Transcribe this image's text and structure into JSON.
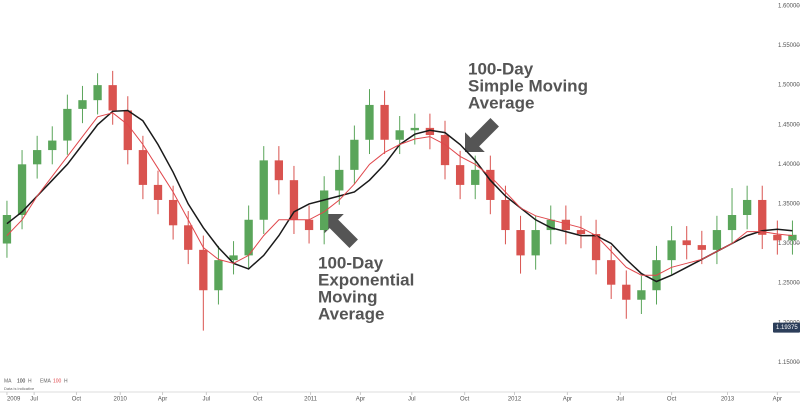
{
  "chart_data": {
    "type": "candlestick",
    "candles": {
      "open": [
        1.3,
        1.336,
        1.4,
        1.418,
        1.43,
        1.47,
        1.481,
        1.5,
        1.468,
        1.418,
        1.374,
        1.355,
        1.323,
        1.292,
        1.241,
        1.279,
        1.285,
        1.33,
        1.405,
        1.38,
        1.33,
        1.317,
        1.367,
        1.393,
        1.431,
        1.475,
        1.431,
        1.443,
        1.446,
        1.437,
        1.399,
        1.374,
        1.393,
        1.355,
        1.317,
        1.285,
        1.317,
        1.33,
        1.317,
        1.312,
        1.279,
        1.248,
        1.229,
        1.241,
        1.279,
        1.304,
        1.298,
        1.292,
        1.317,
        1.336,
        1.355,
        1.311,
        1.304
      ],
      "high": [
        1.354,
        1.418,
        1.436,
        1.448,
        1.488,
        1.499,
        1.515,
        1.518,
        1.486,
        1.436,
        1.392,
        1.373,
        1.341,
        1.31,
        1.297,
        1.303,
        1.348,
        1.423,
        1.423,
        1.398,
        1.348,
        1.385,
        1.411,
        1.449,
        1.495,
        1.493,
        1.461,
        1.464,
        1.464,
        1.455,
        1.417,
        1.411,
        1.411,
        1.373,
        1.335,
        1.335,
        1.348,
        1.348,
        1.335,
        1.33,
        1.297,
        1.266,
        1.259,
        1.297,
        1.322,
        1.322,
        1.316,
        1.335,
        1.37,
        1.373,
        1.373,
        1.329,
        1.329
      ],
      "low": [
        1.282,
        1.318,
        1.382,
        1.4,
        1.412,
        1.452,
        1.463,
        1.45,
        1.4,
        1.356,
        1.337,
        1.305,
        1.274,
        1.19,
        1.223,
        1.261,
        1.267,
        1.312,
        1.362,
        1.312,
        1.3,
        1.299,
        1.349,
        1.375,
        1.413,
        1.413,
        1.413,
        1.425,
        1.419,
        1.381,
        1.356,
        1.356,
        1.337,
        1.299,
        1.262,
        1.267,
        1.299,
        1.299,
        1.294,
        1.261,
        1.23,
        1.205,
        1.211,
        1.223,
        1.261,
        1.28,
        1.274,
        1.274,
        1.299,
        1.318,
        1.293,
        1.286,
        1.286
      ],
      "close": [
        1.336,
        1.4,
        1.418,
        1.43,
        1.47,
        1.481,
        1.5,
        1.468,
        1.418,
        1.374,
        1.355,
        1.323,
        1.292,
        1.241,
        1.279,
        1.285,
        1.33,
        1.405,
        1.38,
        1.33,
        1.317,
        1.367,
        1.393,
        1.431,
        1.475,
        1.431,
        1.443,
        1.446,
        1.437,
        1.399,
        1.374,
        1.393,
        1.355,
        1.317,
        1.285,
        1.317,
        1.33,
        1.317,
        1.312,
        1.279,
        1.248,
        1.229,
        1.241,
        1.279,
        1.304,
        1.298,
        1.292,
        1.317,
        1.336,
        1.355,
        1.311,
        1.304,
        1.311
      ],
      "up_color": "#5aa55a",
      "down_color": "#d9534f"
    },
    "lines": [
      {
        "name": "MA",
        "period": 100,
        "source": "H",
        "color": "#1a1a1a",
        "values": [
          1.325,
          1.34,
          1.36,
          1.38,
          1.4,
          1.425,
          1.45,
          1.467,
          1.468,
          1.455,
          1.425,
          1.39,
          1.35,
          1.32,
          1.295,
          1.275,
          1.268,
          1.285,
          1.31,
          1.34,
          1.35,
          1.355,
          1.36,
          1.365,
          1.38,
          1.4,
          1.425,
          1.438,
          1.443,
          1.44,
          1.425,
          1.405,
          1.38,
          1.36,
          1.345,
          1.33,
          1.32,
          1.315,
          1.31,
          1.31,
          1.3,
          1.28,
          1.262,
          1.252,
          1.26,
          1.27,
          1.28,
          1.29,
          1.3,
          1.31,
          1.316,
          1.318,
          1.316
        ]
      },
      {
        "name": "EMA",
        "period": 100,
        "source": "H",
        "color": "#e0474c",
        "values": [
          1.31,
          1.33,
          1.36,
          1.385,
          1.41,
          1.435,
          1.46,
          1.465,
          1.45,
          1.425,
          1.395,
          1.365,
          1.33,
          1.295,
          1.28,
          1.275,
          1.285,
          1.31,
          1.33,
          1.33,
          1.33,
          1.34,
          1.355,
          1.375,
          1.4,
          1.415,
          1.425,
          1.432,
          1.435,
          1.425,
          1.41,
          1.4,
          1.385,
          1.365,
          1.345,
          1.335,
          1.33,
          1.325,
          1.32,
          1.31,
          1.29,
          1.27,
          1.26,
          1.26,
          1.27,
          1.275,
          1.28,
          1.29,
          1.3,
          1.315,
          1.315,
          1.312,
          1.31
        ]
      }
    ],
    "ylim": [
      1.1125,
      1.6075
    ],
    "yticks": [
      {
        "value": 1.15,
        "label": "1.15000"
      },
      {
        "value": 1.2,
        "label": "1.20000"
      },
      {
        "value": 1.25,
        "label": "1.25000"
      },
      {
        "value": 1.3,
        "label": "1.30000"
      },
      {
        "value": 1.35,
        "label": "1.35000"
      },
      {
        "value": 1.4,
        "label": "1.40000"
      },
      {
        "value": 1.45,
        "label": "1.45000"
      },
      {
        "value": 1.5,
        "label": "1.50000"
      },
      {
        "value": 1.55,
        "label": "1.55000"
      },
      {
        "value": 1.6,
        "label": "1.60000"
      }
    ],
    "xlim": [
      -0.46,
      52.5
    ],
    "xticks": [
      {
        "value": 0,
        "label": "2009"
      },
      {
        "value": 1.8,
        "label": "Jul"
      },
      {
        "value": 4.6,
        "label": "Oct"
      },
      {
        "value": 7.5,
        "label": "2010"
      },
      {
        "value": 10.3,
        "label": "Apr"
      },
      {
        "value": 13.2,
        "label": "Jul"
      },
      {
        "value": 16.6,
        "label": "Oct"
      },
      {
        "value": 20.1,
        "label": "2011"
      },
      {
        "value": 23.4,
        "label": "Apr"
      },
      {
        "value": 26.8,
        "label": "Jul"
      },
      {
        "value": 30.3,
        "label": "Oct"
      },
      {
        "value": 33.6,
        "label": "2012"
      },
      {
        "value": 37.1,
        "label": "Apr"
      },
      {
        "value": 40.6,
        "label": "Jul"
      },
      {
        "value": 44.0,
        "label": "Oct"
      },
      {
        "value": 47.7,
        "label": "2013"
      },
      {
        "value": 51.0,
        "label": "Apr"
      }
    ],
    "last_price": 1.19375,
    "annotations": [
      {
        "lines": [
          "100-Day",
          "Simple Moving",
          "Average"
        ]
      },
      {
        "lines": [
          "100-Day",
          "Exponential",
          "Moving",
          "Average"
        ]
      }
    ],
    "footnote": "Data is indicative"
  }
}
